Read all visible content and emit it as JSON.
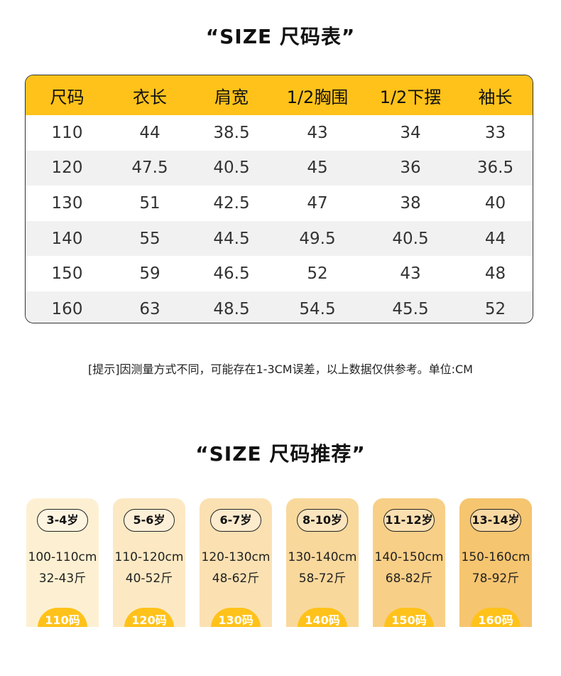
{
  "size_chart": {
    "title": "“SIZE 尺码表”",
    "headers": [
      "尺码",
      "衣长",
      "肩宽",
      "1/2胸围",
      "1/2下摆",
      "袖长"
    ],
    "rows": [
      [
        "110",
        "44",
        "38.5",
        "43",
        "34",
        "33"
      ],
      [
        "120",
        "47.5",
        "40.5",
        "45",
        "36",
        "36.5"
      ],
      [
        "130",
        "51",
        "42.5",
        "47",
        "38",
        "40"
      ],
      [
        "140",
        "55",
        "44.5",
        "49.5",
        "40.5",
        "44"
      ],
      [
        "150",
        "59",
        "46.5",
        "52",
        "43",
        "48"
      ],
      [
        "160",
        "63",
        "48.5",
        "54.5",
        "45.5",
        "52"
      ]
    ],
    "note": "[提示]因测量方式不同，可能存在1-3CM误差，以上数据仅供参考。单位:CM"
  },
  "recommend": {
    "title": "“SIZE 尺码推荐”",
    "cards": [
      {
        "age": "3-4岁",
        "height": "100-110cm",
        "weight": "32-43斤",
        "size": "110码",
        "bg": "#fdf0d2"
      },
      {
        "age": "5-6岁",
        "height": "110-120cm",
        "weight": "40-52斤",
        "size": "120码",
        "bg": "#fce9c3"
      },
      {
        "age": "6-7岁",
        "height": "120-130cm",
        "weight": "48-62斤",
        "size": "130码",
        "bg": "#fbe1b2"
      },
      {
        "age": "8-10岁",
        "height": "130-140cm",
        "weight": "58-72斤",
        "size": "140码",
        "bg": "#f9d89c"
      },
      {
        "age": "11-12岁",
        "height": "140-150cm",
        "weight": "68-82斤",
        "size": "150码",
        "bg": "#f8cf87"
      },
      {
        "age": "13-14岁",
        "height": "150-160cm",
        "weight": "78-92斤",
        "size": "160码",
        "bg": "#f6c570"
      }
    ]
  },
  "colors": {
    "accent": "#ffc21a"
  }
}
